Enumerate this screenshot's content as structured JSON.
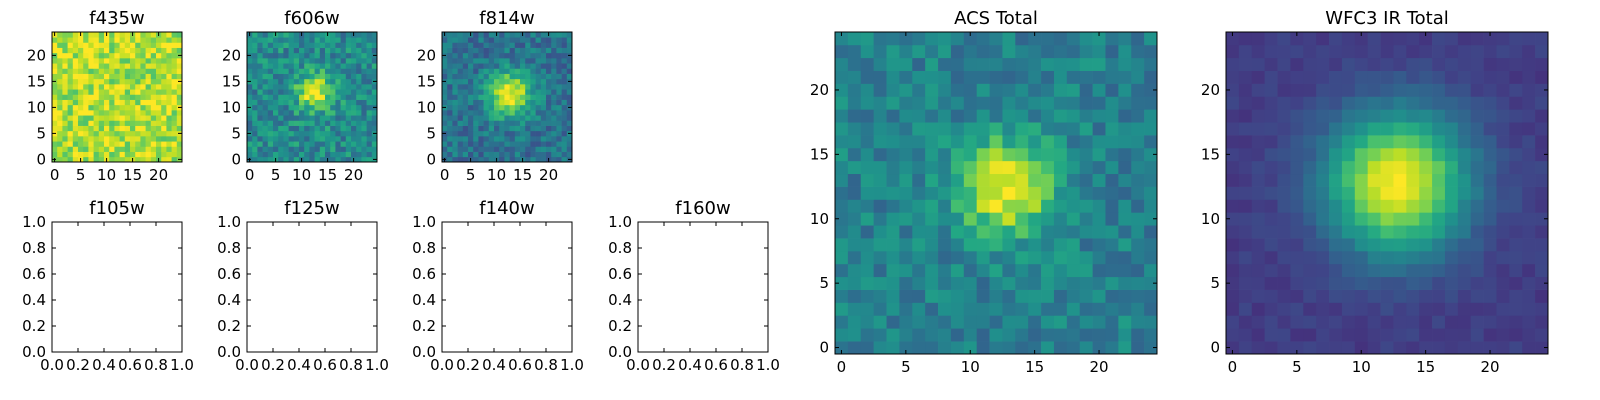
{
  "chart_data": [
    {
      "type": "heatmap",
      "title": "f435w",
      "xlabel": "",
      "ylabel": "",
      "grid": 25,
      "xlim": [
        -0.5,
        24.5
      ],
      "ylim": [
        -0.5,
        24.5
      ],
      "xticks": [
        0,
        5,
        10,
        15,
        20
      ],
      "yticks": [
        0,
        5,
        10,
        15,
        20
      ],
      "xticklabels": [
        "0",
        "5",
        "10",
        "15",
        "20"
      ],
      "yticklabels": [
        "0",
        "5",
        "10",
        "15",
        "20"
      ],
      "colormap": "viridis",
      "field": {
        "background": 0.88,
        "peak": 0.0,
        "sigma": 4.0,
        "noise": 0.16,
        "seed": 11,
        "cx": 12.5,
        "cy": 12.5
      }
    },
    {
      "type": "heatmap",
      "title": "f606w",
      "xlabel": "",
      "ylabel": "",
      "grid": 25,
      "xlim": [
        -0.5,
        24.5
      ],
      "ylim": [
        -0.5,
        24.5
      ],
      "xticks": [
        0,
        5,
        10,
        15,
        20
      ],
      "yticks": [
        0,
        5,
        10,
        15,
        20
      ],
      "xticklabels": [
        "0",
        "5",
        "10",
        "15",
        "20"
      ],
      "yticklabels": [
        "0",
        "5",
        "10",
        "15",
        "20"
      ],
      "colormap": "viridis",
      "field": {
        "background": 0.48,
        "peak": 0.52,
        "sigma": 2.4,
        "noise": 0.16,
        "seed": 23,
        "cx": 12.5,
        "cy": 13.0
      }
    },
    {
      "type": "heatmap",
      "title": "f814w",
      "xlabel": "",
      "ylabel": "",
      "grid": 25,
      "xlim": [
        -0.5,
        24.5
      ],
      "ylim": [
        -0.5,
        24.5
      ],
      "xticks": [
        0,
        5,
        10,
        15,
        20
      ],
      "yticks": [
        0,
        5,
        10,
        15,
        20
      ],
      "xticklabels": [
        "0",
        "5",
        "10",
        "15",
        "20"
      ],
      "yticklabels": [
        "0",
        "5",
        "10",
        "15",
        "20"
      ],
      "colormap": "viridis",
      "field": {
        "background": 0.38,
        "peak": 0.62,
        "sigma": 3.0,
        "noise": 0.13,
        "seed": 37,
        "cx": 12.5,
        "cy": 12.5
      }
    },
    {
      "type": "heatmap",
      "title": "f105w",
      "xlabel": "",
      "ylabel": "",
      "xlim": [
        0.0,
        1.0
      ],
      "ylim": [
        0.0,
        1.0
      ],
      "xticks": [
        0.0,
        0.2,
        0.4,
        0.6,
        0.8,
        1.0
      ],
      "yticks": [
        0.0,
        0.2,
        0.4,
        0.6,
        0.8,
        1.0
      ],
      "xticklabels": [
        "0.0",
        "0.2",
        "0.4",
        "0.6",
        "0.8",
        "1.0"
      ],
      "yticklabels": [
        "0.0",
        "0.2",
        "0.4",
        "0.6",
        "0.8",
        "1.0"
      ],
      "values": []
    },
    {
      "type": "heatmap",
      "title": "f125w",
      "xlabel": "",
      "ylabel": "",
      "xlim": [
        0.0,
        1.0
      ],
      "ylim": [
        0.0,
        1.0
      ],
      "xticks": [
        0.0,
        0.2,
        0.4,
        0.6,
        0.8,
        1.0
      ],
      "yticks": [
        0.0,
        0.2,
        0.4,
        0.6,
        0.8,
        1.0
      ],
      "xticklabels": [
        "0.0",
        "0.2",
        "0.4",
        "0.6",
        "0.8",
        "1.0"
      ],
      "yticklabels": [
        "0.0",
        "0.2",
        "0.4",
        "0.6",
        "0.8",
        "1.0"
      ],
      "values": []
    },
    {
      "type": "heatmap",
      "title": "f140w",
      "xlabel": "",
      "ylabel": "",
      "xlim": [
        0.0,
        1.0
      ],
      "ylim": [
        0.0,
        1.0
      ],
      "xticks": [
        0.0,
        0.2,
        0.4,
        0.6,
        0.8,
        1.0
      ],
      "yticks": [
        0.0,
        0.2,
        0.4,
        0.6,
        0.8,
        1.0
      ],
      "xticklabels": [
        "0.0",
        "0.2",
        "0.4",
        "0.6",
        "0.8",
        "1.0"
      ],
      "yticklabels": [
        "0.0",
        "0.2",
        "0.4",
        "0.6",
        "0.8",
        "1.0"
      ],
      "values": []
    },
    {
      "type": "heatmap",
      "title": "f160w",
      "xlabel": "",
      "ylabel": "",
      "xlim": [
        0.0,
        1.0
      ],
      "ylim": [
        0.0,
        1.0
      ],
      "xticks": [
        0.0,
        0.2,
        0.4,
        0.6,
        0.8,
        1.0
      ],
      "yticks": [
        0.0,
        0.2,
        0.4,
        0.6,
        0.8,
        1.0
      ],
      "xticklabels": [
        "0.0",
        "0.2",
        "0.4",
        "0.6",
        "0.8",
        "1.0"
      ],
      "yticklabels": [
        "0.0",
        "0.2",
        "0.4",
        "0.6",
        "0.8",
        "1.0"
      ],
      "values": []
    },
    {
      "type": "heatmap",
      "title": "ACS Total",
      "xlabel": "",
      "ylabel": "",
      "grid": 25,
      "xlim": [
        -0.5,
        24.5
      ],
      "ylim": [
        -0.5,
        24.5
      ],
      "xticks": [
        0,
        5,
        10,
        15,
        20
      ],
      "yticks": [
        0,
        5,
        10,
        15,
        20
      ],
      "xticklabels": [
        "0",
        "5",
        "10",
        "15",
        "20"
      ],
      "yticklabels": [
        "0",
        "5",
        "10",
        "15",
        "20"
      ],
      "colormap": "viridis",
      "field": {
        "background": 0.44,
        "peak": 0.56,
        "sigma": 2.6,
        "noise": 0.12,
        "seed": 53,
        "cx": 12.8,
        "cy": 12.4
      }
    },
    {
      "type": "heatmap",
      "title": "WFC3 IR Total",
      "xlabel": "",
      "ylabel": "",
      "grid": 25,
      "xlim": [
        -0.5,
        24.5
      ],
      "ylim": [
        -0.5,
        24.5
      ],
      "xticks": [
        0,
        5,
        10,
        15,
        20
      ],
      "yticks": [
        0,
        5,
        10,
        15,
        20
      ],
      "xticklabels": [
        "0",
        "5",
        "10",
        "15",
        "20"
      ],
      "yticklabels": [
        "0",
        "5",
        "10",
        "15",
        "20"
      ],
      "colormap": "viridis",
      "field": {
        "background": 0.18,
        "peak": 0.82,
        "sigma": 3.8,
        "noise": 0.035,
        "seed": 71,
        "cx": 12.8,
        "cy": 12.8
      }
    }
  ]
}
